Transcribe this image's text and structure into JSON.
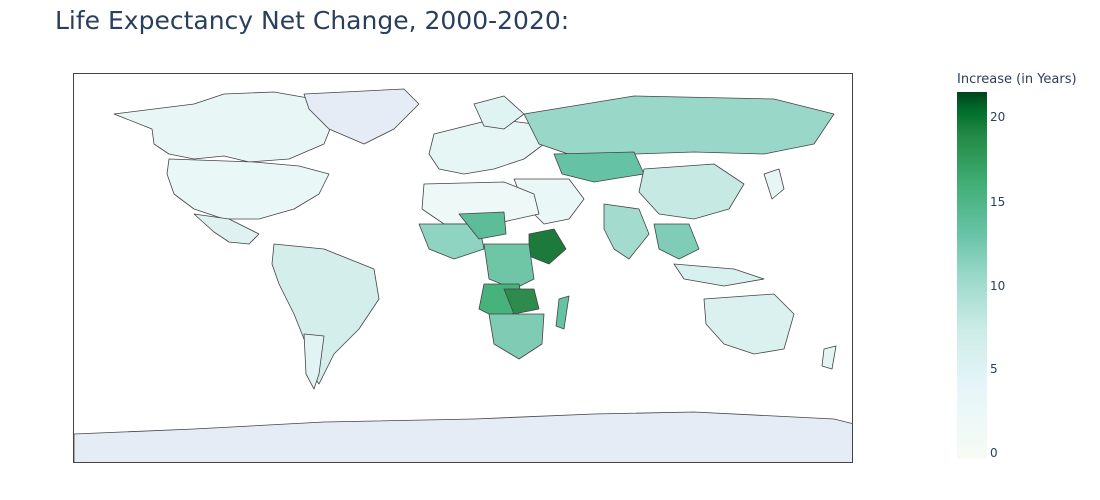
{
  "title": "Life Expectancy Net Change, 2000-2020:",
  "colorbar": {
    "title": "Increase (in Years)",
    "ticks": [
      "20",
      "15",
      "10",
      "5",
      "0"
    ],
    "range": [
      0,
      21.7
    ],
    "colorscale": [
      "#f7fcf5",
      "#e5f5f9",
      "#ccece6",
      "#99d8c9",
      "#66c2a4",
      "#41ae76",
      "#238b45",
      "#006d2c",
      "#00441b"
    ]
  },
  "map": {
    "projection": "equirectangular",
    "land_nodata_color": "#e5ecf6",
    "border_color": "#444444"
  }
}
